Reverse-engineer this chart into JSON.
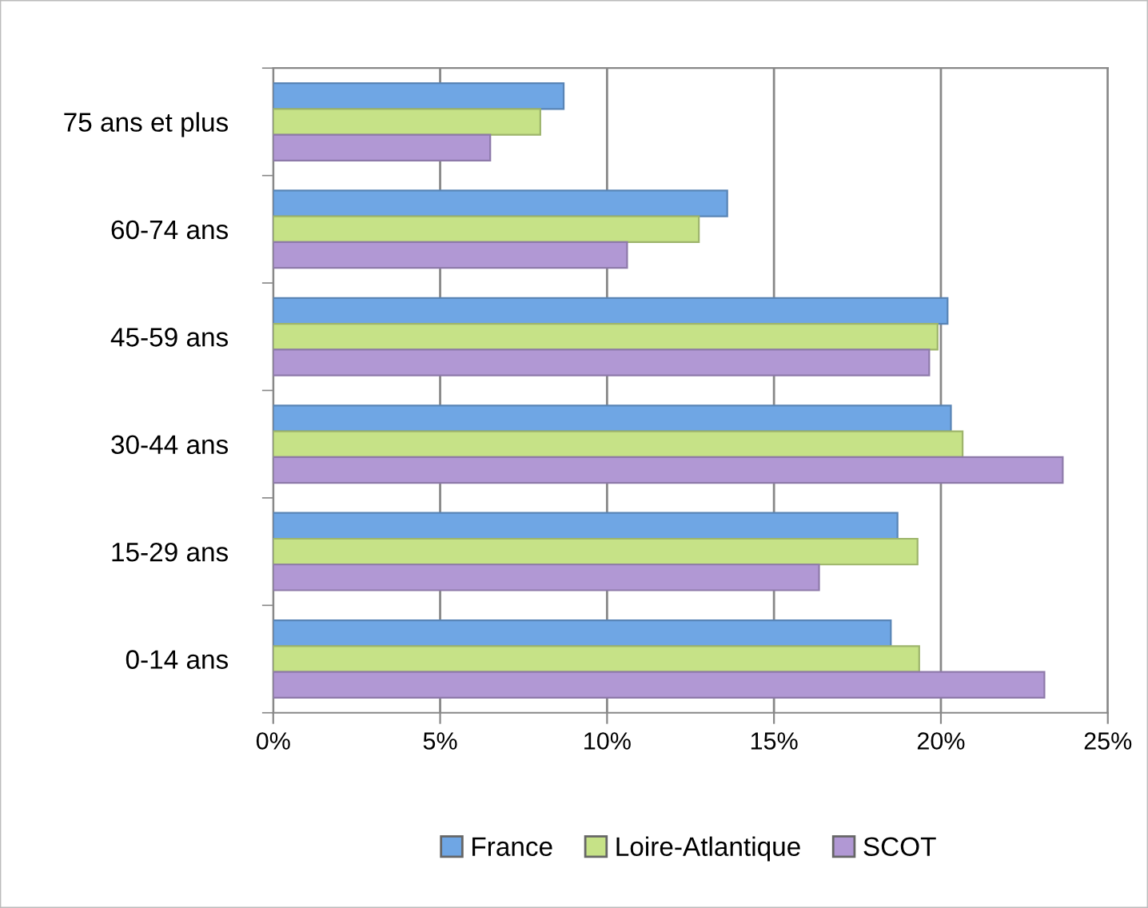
{
  "chart_data": {
    "type": "bar",
    "orientation": "horizontal",
    "categories": [
      "75 ans et plus",
      "60-74 ans",
      "45-59 ans",
      "30-44 ans",
      "15-29 ans",
      "0-14 ans"
    ],
    "series": [
      {
        "name": "France",
        "color": "#6fa6e4",
        "values": [
          8.7,
          13.6,
          20.2,
          20.3,
          18.7,
          18.5
        ]
      },
      {
        "name": "Loire-Atlantique",
        "color": "#c6e287",
        "values": [
          8.0,
          12.75,
          19.9,
          20.65,
          19.3,
          19.35
        ]
      },
      {
        "name": "SCOT",
        "color": "#b198d4",
        "values": [
          6.5,
          10.6,
          19.65,
          23.65,
          16.35,
          23.1
        ]
      }
    ],
    "xlim": [
      0,
      25
    ],
    "xticks": [
      {
        "value": 0,
        "label": "0%"
      },
      {
        "value": 5,
        "label": "5%"
      },
      {
        "value": 10,
        "label": "10%"
      },
      {
        "value": 15,
        "label": "15%"
      },
      {
        "value": 20,
        "label": "20%"
      },
      {
        "value": 25,
        "label": "25%"
      }
    ],
    "grid": "x",
    "legend": "bottom"
  }
}
